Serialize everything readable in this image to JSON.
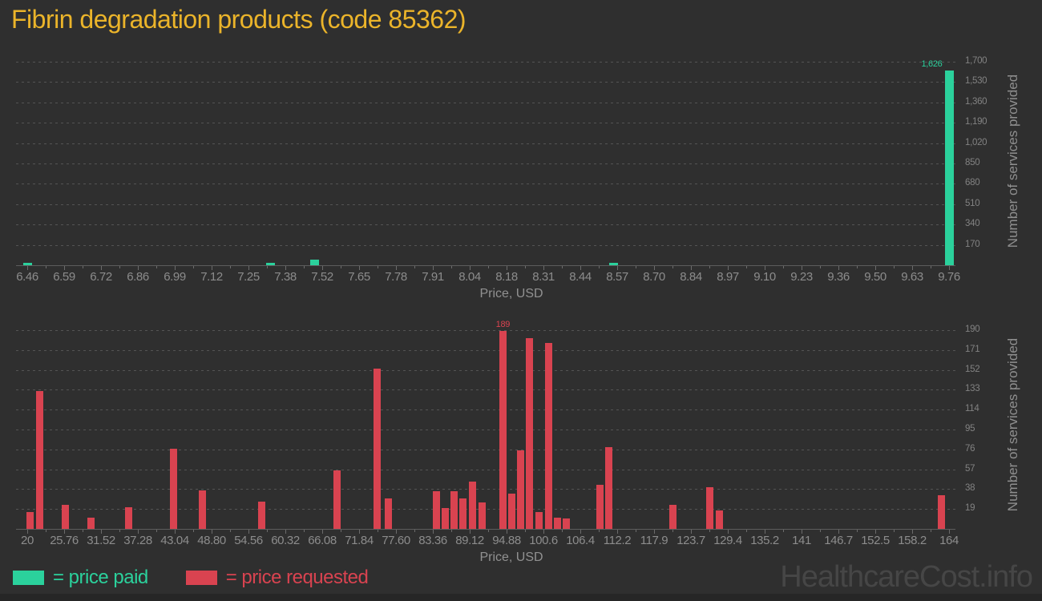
{
  "title": "Fibrin degradation products (code 85362)",
  "watermark": "HealthcareCost.info",
  "colors": {
    "background": "#2f2f2f",
    "title": "#ebb42a",
    "price_paid": "#2bd19c",
    "price_requested": "#d94350",
    "axis_text": "#8c8c8c",
    "watermark": "#464646"
  },
  "legend": [
    {
      "label": "= price paid",
      "color": "#2bd19c"
    },
    {
      "label": "= price requested",
      "color": "#d94350"
    }
  ],
  "chart_data": [
    {
      "type": "bar",
      "name": "price-paid-histogram",
      "series_name": "price paid",
      "color": "#2bd19c",
      "xlabel": "Price, USD",
      "ylabel": "Number of services provided",
      "grid": "dotted-horizontal",
      "legend_position": "bottom",
      "x_range": [
        6.46,
        9.76
      ],
      "x_tick_labels": [
        "6.46",
        "6.59",
        "6.72",
        "6.86",
        "6.99",
        "7.12",
        "7.25",
        "7.38",
        "7.52",
        "7.65",
        "7.78",
        "7.91",
        "8.04",
        "8.18",
        "8.31",
        "8.44",
        "8.57",
        "8.70",
        "8.84",
        "8.97",
        "9.10",
        "9.23",
        "9.36",
        "9.50",
        "9.63",
        "9.76"
      ],
      "y_max": 1700,
      "y_tick_labels": [
        "170",
        "340",
        "510",
        "680",
        "850",
        "1,020",
        "1,190",
        "1,360",
        "1,530",
        "1,700"
      ],
      "bars": [
        {
          "x": 6.46,
          "y": 21
        },
        {
          "x": 7.33,
          "y": 20
        },
        {
          "x": 7.49,
          "y": 47
        },
        {
          "x": 8.56,
          "y": 17
        },
        {
          "x": 9.76,
          "y": 1626,
          "label": "1,626"
        }
      ]
    },
    {
      "type": "bar",
      "name": "price-requested-histogram",
      "series_name": "price requested",
      "color": "#d94350",
      "xlabel": "Price, USD",
      "ylabel": "Number of services provided",
      "grid": "dotted-horizontal",
      "legend_position": "bottom",
      "x_range": [
        20,
        164
      ],
      "x_tick_labels": [
        "20",
        "25.76",
        "31.52",
        "37.28",
        "43.04",
        "48.80",
        "54.56",
        "60.32",
        "66.08",
        "71.84",
        "77.60",
        "83.36",
        "89.12",
        "94.88",
        "100.6",
        "106.4",
        "112.2",
        "117.9",
        "123.7",
        "129.4",
        "135.2",
        "141",
        "146.7",
        "152.5",
        "158.2",
        "164"
      ],
      "y_max": 190,
      "y_tick_labels": [
        "19",
        "38",
        "57",
        "76",
        "95",
        "114",
        "133",
        "152",
        "171",
        "190"
      ],
      "bars": [
        {
          "x": 20.4,
          "y": 16
        },
        {
          "x": 21.9,
          "y": 132
        },
        {
          "x": 26.0,
          "y": 23
        },
        {
          "x": 29.9,
          "y": 11
        },
        {
          "x": 35.8,
          "y": 21
        },
        {
          "x": 42.9,
          "y": 77
        },
        {
          "x": 47.3,
          "y": 37
        },
        {
          "x": 56.6,
          "y": 26
        },
        {
          "x": 68.4,
          "y": 56
        },
        {
          "x": 74.6,
          "y": 153
        },
        {
          "x": 76.4,
          "y": 29
        },
        {
          "x": 83.9,
          "y": 36
        },
        {
          "x": 85.3,
          "y": 20
        },
        {
          "x": 86.7,
          "y": 36
        },
        {
          "x": 88.1,
          "y": 29
        },
        {
          "x": 89.6,
          "y": 45
        },
        {
          "x": 91.0,
          "y": 25
        },
        {
          "x": 94.3,
          "y": 189,
          "label": "189"
        },
        {
          "x": 95.7,
          "y": 34
        },
        {
          "x": 97.1,
          "y": 75
        },
        {
          "x": 98.5,
          "y": 182
        },
        {
          "x": 99.9,
          "y": 16
        },
        {
          "x": 101.4,
          "y": 178
        },
        {
          "x": 102.8,
          "y": 11
        },
        {
          "x": 104.2,
          "y": 10
        },
        {
          "x": 109.5,
          "y": 42
        },
        {
          "x": 110.9,
          "y": 78
        },
        {
          "x": 120.9,
          "y": 23
        },
        {
          "x": 126.6,
          "y": 40
        },
        {
          "x": 128.1,
          "y": 18
        },
        {
          "x": 162.8,
          "y": 32
        }
      ]
    }
  ]
}
